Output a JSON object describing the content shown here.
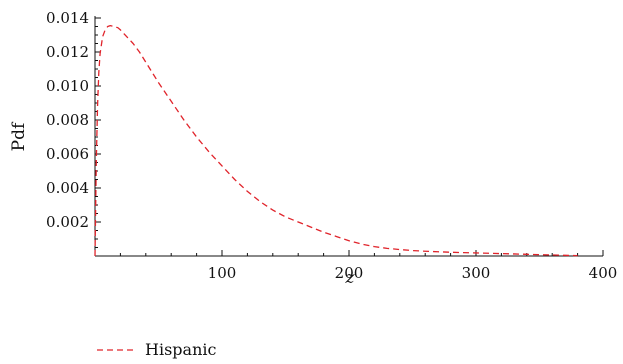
{
  "chart_data": {
    "type": "line",
    "title": "",
    "xlabel": "z",
    "ylabel": "Pdf",
    "xlim": [
      0,
      400
    ],
    "ylim": [
      0,
      0.014
    ],
    "x_ticks": [
      {
        "value": 100,
        "label": "100"
      },
      {
        "value": 200,
        "label": "200"
      },
      {
        "value": 300,
        "label": "300"
      },
      {
        "value": 400,
        "label": "400"
      }
    ],
    "y_ticks": [
      {
        "value": 0.002,
        "label": "0.002"
      },
      {
        "value": 0.004,
        "label": "0.004"
      },
      {
        "value": 0.006,
        "label": "0.006"
      },
      {
        "value": 0.008,
        "label": "0.008"
      },
      {
        "value": 0.01,
        "label": "0.010"
      },
      {
        "value": 0.012,
        "label": "0.012"
      },
      {
        "value": 0.014,
        "label": "0.014"
      }
    ],
    "grid": false,
    "legend_position": "bottom-left",
    "series": [
      {
        "name": "Hispanic",
        "color": "#e0242b",
        "dash": "dashed",
        "x": [
          0,
          1,
          2,
          3,
          4,
          6,
          8,
          10,
          12,
          15,
          18,
          20,
          25,
          30,
          35,
          40,
          50,
          60,
          70,
          80,
          90,
          100,
          110,
          120,
          130,
          140,
          150,
          160,
          170,
          180,
          190,
          200,
          210,
          220,
          230,
          240,
          250,
          260,
          270,
          280,
          290,
          300,
          310,
          320,
          330,
          340,
          350,
          360,
          370,
          380
        ],
        "y": [
          0.0,
          0.0055,
          0.0088,
          0.0108,
          0.0119,
          0.0129,
          0.0133,
          0.0135,
          0.01355,
          0.0135,
          0.01343,
          0.0133,
          0.0129,
          0.0125,
          0.012,
          0.0114,
          0.0102,
          0.0091,
          0.008,
          0.007,
          0.0061,
          0.0053,
          0.0045,
          0.0038,
          0.0032,
          0.0027,
          0.0023,
          0.002,
          0.0017,
          0.0014,
          0.00115,
          0.0009,
          0.0007,
          0.00055,
          0.00045,
          0.00038,
          0.00032,
          0.00028,
          0.00025,
          0.00022,
          0.0002,
          0.00018,
          0.00016,
          0.00014,
          0.00012,
          0.0001,
          8e-05,
          6e-05,
          4e-05,
          2e-05
        ]
      }
    ]
  }
}
